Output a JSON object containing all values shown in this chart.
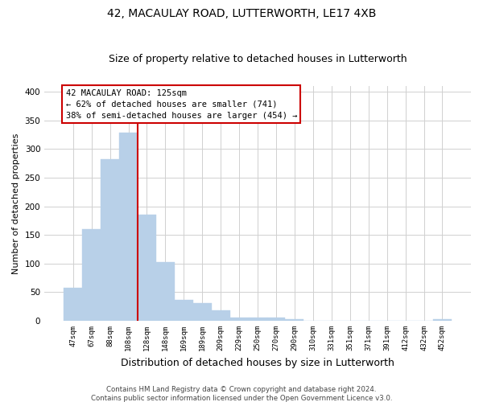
{
  "title": "42, MACAULAY ROAD, LUTTERWORTH, LE17 4XB",
  "subtitle": "Size of property relative to detached houses in Lutterworth",
  "xlabel": "Distribution of detached houses by size in Lutterworth",
  "ylabel": "Number of detached properties",
  "bin_labels": [
    "47sqm",
    "67sqm",
    "88sqm",
    "108sqm",
    "128sqm",
    "148sqm",
    "169sqm",
    "189sqm",
    "209sqm",
    "229sqm",
    "250sqm",
    "270sqm",
    "290sqm",
    "310sqm",
    "331sqm",
    "351sqm",
    "371sqm",
    "391sqm",
    "412sqm",
    "432sqm",
    "452sqm"
  ],
  "bin_values": [
    57,
    160,
    283,
    328,
    185,
    103,
    37,
    31,
    18,
    6,
    5,
    5,
    3,
    0,
    0,
    0,
    0,
    0,
    0,
    0,
    3
  ],
  "bar_color": "#b8d0e8",
  "bar_edgecolor": "#b8d0e8",
  "vline_color": "#cc0000",
  "vline_x_index": 3.5,
  "ylim": [
    0,
    410
  ],
  "yticks": [
    0,
    50,
    100,
    150,
    200,
    250,
    300,
    350,
    400
  ],
  "annotation_title": "42 MACAULAY ROAD: 125sqm",
  "annotation_line1": "← 62% of detached houses are smaller (741)",
  "annotation_line2": "38% of semi-detached houses are larger (454) →",
  "annotation_box_color": "#cc0000",
  "footer_line1": "Contains HM Land Registry data © Crown copyright and database right 2024.",
  "footer_line2": "Contains public sector information licensed under the Open Government Licence v3.0.",
  "background_color": "#ffffff",
  "grid_color": "#d0d0d0"
}
